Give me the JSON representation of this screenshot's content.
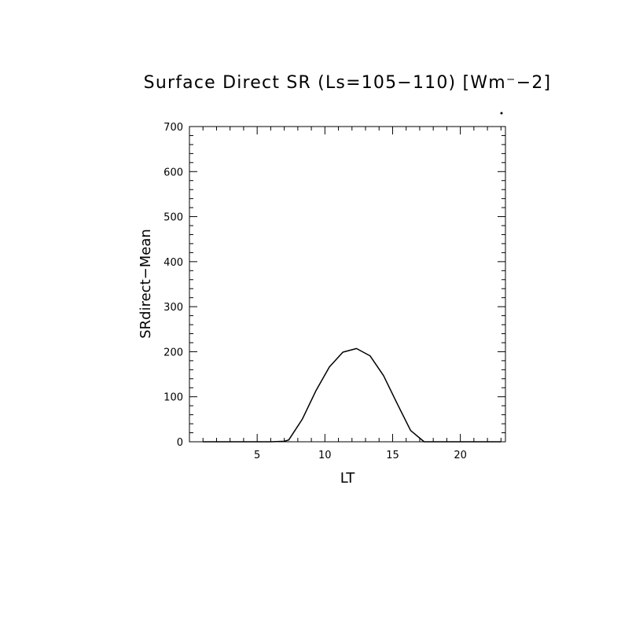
{
  "chart_data": {
    "type": "line",
    "title": "Surface Direct SR (Ls=105−110) [Wm⁻−2]",
    "xlabel": "LT",
    "ylabel": "SRdirect−Mean",
    "xlim": [
      0.0,
      23.33
    ],
    "ylim": [
      0,
      700
    ],
    "xticks": [
      5,
      10,
      15,
      20
    ],
    "yticks": [
      0,
      100,
      200,
      300,
      400,
      500,
      600,
      700
    ],
    "xminor_step": 1,
    "yminor_step": 20,
    "grid": false,
    "line_color": "#000000",
    "series": [
      {
        "x": [
          1.0,
          2.0,
          3.0,
          4.0,
          5.0,
          6.0,
          7.0,
          7.33,
          8.33,
          9.33,
          10.33,
          11.33,
          12.33,
          13.33,
          14.33,
          15.33,
          16.33,
          17.33,
          18.0,
          19.0,
          20.0,
          21.0,
          22.0,
          23.0
        ],
        "y": [
          0,
          0,
          0,
          0,
          0,
          0,
          1,
          4,
          50,
          113,
          166,
          199,
          207,
          191,
          147,
          85,
          25,
          0,
          0,
          0,
          0,
          0,
          0,
          0
        ]
      }
    ]
  }
}
